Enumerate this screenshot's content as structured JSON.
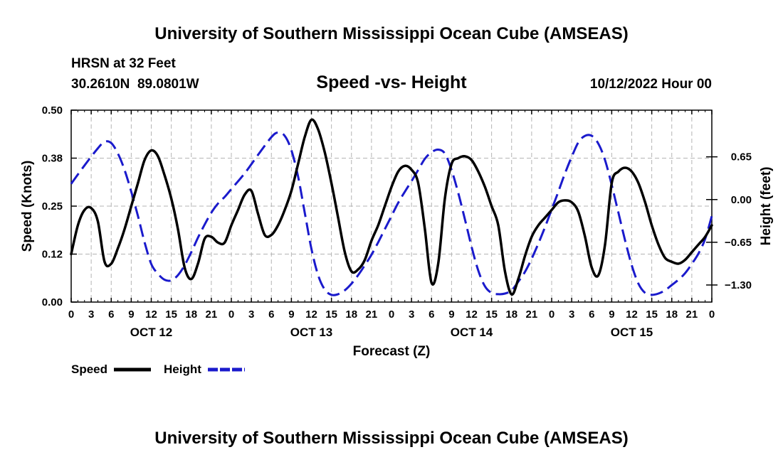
{
  "header": {
    "title": "University of Southern Mississippi Ocean Cube (AMSEAS)",
    "station": "HRSN at 32 Feet",
    "coords": "30.2610N  89.0801W",
    "subtitle": "Speed -vs- Height",
    "run_time": "10/12/2022 Hour 00"
  },
  "footer": {
    "title": "University of Southern Mississippi Ocean Cube (AMSEAS)"
  },
  "chart_data": {
    "type": "line",
    "title": "Speed -vs- Height",
    "xlabel": "Forecast (Z)",
    "ylabel": "Speed (Knots)",
    "y2label": "Height (feet)",
    "grid": true,
    "x_range_hours": [
      0,
      96
    ],
    "ylim": [
      0,
      0.5
    ],
    "y2lim": [
      -1.56,
      1.36
    ],
    "x_tick_labels": [
      "0",
      "3",
      "6",
      "9",
      "12",
      "15",
      "18",
      "21",
      "0",
      "3",
      "6",
      "9",
      "12",
      "15",
      "18",
      "21",
      "0",
      "3",
      "6",
      "9",
      "12",
      "15",
      "18",
      "21",
      "0",
      "3",
      "6",
      "9",
      "12",
      "15",
      "18",
      "21",
      "0"
    ],
    "date_labels": [
      {
        "hour": 12,
        "label": "OCT 12"
      },
      {
        "hour": 36,
        "label": "OCT 13"
      },
      {
        "hour": 60,
        "label": "OCT 14"
      },
      {
        "hour": 84,
        "label": "OCT 15"
      }
    ],
    "y_ticks": [
      {
        "value": 0.0,
        "label": "0.00"
      },
      {
        "value": 0.125,
        "label": "0.12"
      },
      {
        "value": 0.25,
        "label": "0.25"
      },
      {
        "value": 0.375,
        "label": "0.38"
      },
      {
        "value": 0.5,
        "label": "0.50"
      }
    ],
    "y2_ticks": [
      {
        "value": 0.65,
        "label": "0.65"
      },
      {
        "value": 0.0,
        "label": "0.00"
      },
      {
        "value": -0.65,
        "label": "-0.65"
      },
      {
        "value": -1.3,
        "label": "-1.30"
      }
    ],
    "legend": {
      "position": "bottom-left",
      "speed_label": "Speed",
      "height_label": "Height"
    },
    "series": [
      {
        "name": "Speed",
        "axis": "left",
        "color": "#000000",
        "style": "solid",
        "x": [
          0,
          1,
          2,
          3,
          4,
          5,
          6,
          7,
          8,
          9,
          10,
          11,
          12,
          13,
          14,
          15,
          16,
          17,
          18,
          19,
          20,
          21,
          22,
          23,
          24,
          25,
          26,
          27,
          28,
          29,
          30,
          31,
          32,
          33,
          34,
          35,
          36,
          37,
          38,
          39,
          40,
          41,
          42,
          43,
          44,
          45,
          46,
          47,
          48,
          49,
          50,
          51,
          52,
          53,
          54,
          55,
          56,
          57,
          58,
          59,
          60,
          61,
          62,
          63,
          64,
          65,
          66,
          67,
          68,
          69,
          70,
          71,
          72,
          73,
          74,
          75,
          76,
          77,
          78,
          79,
          80,
          81,
          82,
          83,
          84,
          85,
          86,
          87,
          88,
          89,
          90,
          91,
          92,
          93,
          94,
          95,
          96
        ],
        "values": [
          0.125,
          0.2,
          0.24,
          0.245,
          0.21,
          0.105,
          0.1,
          0.14,
          0.19,
          0.25,
          0.31,
          0.37,
          0.395,
          0.38,
          0.33,
          0.27,
          0.19,
          0.09,
          0.06,
          0.1,
          0.165,
          0.17,
          0.155,
          0.155,
          0.2,
          0.24,
          0.28,
          0.29,
          0.23,
          0.175,
          0.175,
          0.2,
          0.24,
          0.29,
          0.36,
          0.43,
          0.475,
          0.45,
          0.39,
          0.31,
          0.22,
          0.13,
          0.08,
          0.085,
          0.11,
          0.16,
          0.2,
          0.25,
          0.3,
          0.34,
          0.355,
          0.345,
          0.31,
          0.19,
          0.05,
          0.1,
          0.27,
          0.36,
          0.375,
          0.38,
          0.37,
          0.34,
          0.3,
          0.25,
          0.2,
          0.08,
          0.02,
          0.06,
          0.12,
          0.17,
          0.2,
          0.22,
          0.24,
          0.26,
          0.265,
          0.26,
          0.235,
          0.17,
          0.09,
          0.07,
          0.15,
          0.31,
          0.34,
          0.35,
          0.34,
          0.31,
          0.26,
          0.2,
          0.15,
          0.115,
          0.105,
          0.1,
          0.11,
          0.13,
          0.15,
          0.17,
          0.2
        ]
      },
      {
        "name": "Height",
        "axis": "right",
        "color": "#1a1acc",
        "style": "dashed",
        "x": [
          0,
          2,
          4,
          5,
          6,
          7,
          8,
          9,
          10,
          11,
          12,
          13,
          14,
          15,
          16,
          17,
          18,
          19,
          20,
          21,
          22,
          23,
          24,
          26,
          28,
          30,
          31,
          32,
          33,
          34,
          35,
          36,
          37,
          38,
          39,
          40,
          41,
          42,
          43,
          44,
          45,
          46,
          47,
          48,
          49,
          50,
          51,
          52,
          53,
          54,
          55,
          56,
          57,
          58,
          59,
          60,
          61,
          62,
          63,
          64,
          65,
          66,
          67,
          68,
          69,
          70,
          71,
          72,
          73,
          74,
          75,
          76,
          77,
          78,
          79,
          80,
          81,
          82,
          83,
          84,
          85,
          86,
          87,
          88,
          89,
          90,
          91,
          92,
          93,
          94,
          95,
          96
        ],
        "values": [
          0.24,
          0.52,
          0.78,
          0.88,
          0.86,
          0.7,
          0.45,
          0.12,
          -0.25,
          -0.65,
          -0.98,
          -1.13,
          -1.22,
          -1.23,
          -1.15,
          -1.0,
          -0.8,
          -0.58,
          -0.38,
          -0.2,
          -0.06,
          0.04,
          0.16,
          0.4,
          0.68,
          0.95,
          1.02,
          0.97,
          0.75,
          0.35,
          -0.2,
          -0.75,
          -1.15,
          -1.37,
          -1.45,
          -1.44,
          -1.38,
          -1.28,
          -1.15,
          -1.0,
          -0.84,
          -0.65,
          -0.45,
          -0.25,
          -0.05,
          0.12,
          0.28,
          0.45,
          0.62,
          0.72,
          0.76,
          0.7,
          0.45,
          0.1,
          -0.3,
          -0.72,
          -1.08,
          -1.32,
          -1.42,
          -1.44,
          -1.43,
          -1.38,
          -1.25,
          -1.1,
          -0.9,
          -0.67,
          -0.42,
          -0.15,
          0.12,
          0.4,
          0.65,
          0.87,
          0.97,
          0.97,
          0.85,
          0.6,
          0.22,
          -0.2,
          -0.62,
          -1.0,
          -1.28,
          -1.42,
          -1.45,
          -1.43,
          -1.38,
          -1.3,
          -1.22,
          -1.12,
          -0.98,
          -0.82,
          -0.6,
          -0.25
        ]
      }
    ]
  }
}
